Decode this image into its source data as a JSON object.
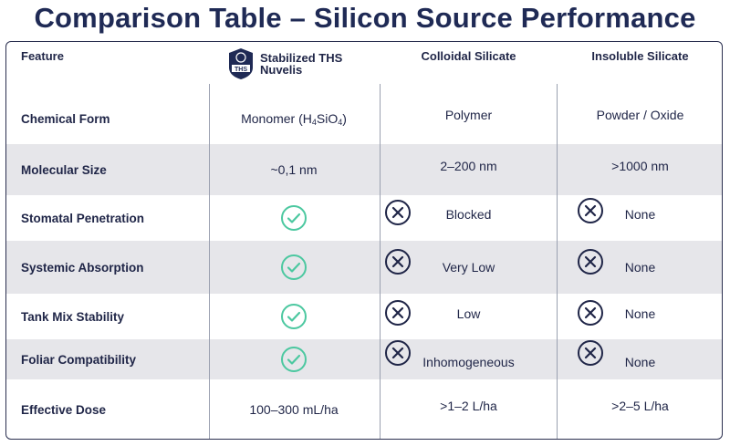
{
  "title": "Comparison Table – Silicon Source Performance",
  "header": {
    "feature": "Feature",
    "col1": "Stabilized THS Nuvelis",
    "col1_logo_text": "THS",
    "col2": "Colloidal Silicate",
    "col3": "Insoluble Silicate"
  },
  "rows": [
    {
      "feature": "Chemical Form",
      "c1_pre": "Monomer (H",
      "c1_sub1": "4",
      "c1_mid": "SiO",
      "c1_sub2": "4",
      "c1_post": ")",
      "c2": "Polymer",
      "c3": "Powder / Oxide"
    },
    {
      "feature": "Molecular Size",
      "c1": "~0,1 nm",
      "c2": "2–200 nm",
      "c3": ">1000 nm"
    },
    {
      "feature": "Stomatal Penetration",
      "c1": "check",
      "c2": "Blocked",
      "c3": "None"
    },
    {
      "feature": "Systemic Absorption",
      "c1": "check",
      "c2": "Very Low",
      "c3": "None"
    },
    {
      "feature": "Tank Mix Stability",
      "c1": "check",
      "c2": "Low",
      "c3": "None"
    },
    {
      "feature": "Foliar Compatibility",
      "c1": "check",
      "c2": "Inhomogeneous",
      "c3": "None"
    },
    {
      "feature": "Effective Dose",
      "c1": "100–300 mL/ha",
      "c2": ">1–2 L/ha",
      "c3": ">2–5 L/ha"
    }
  ],
  "colors": {
    "navy": "#1f2547",
    "check_green": "#4cc8a0",
    "shade": "#e6e6ea"
  },
  "icons": {
    "yes": "check-circle-icon",
    "no": "x-circle-icon"
  }
}
